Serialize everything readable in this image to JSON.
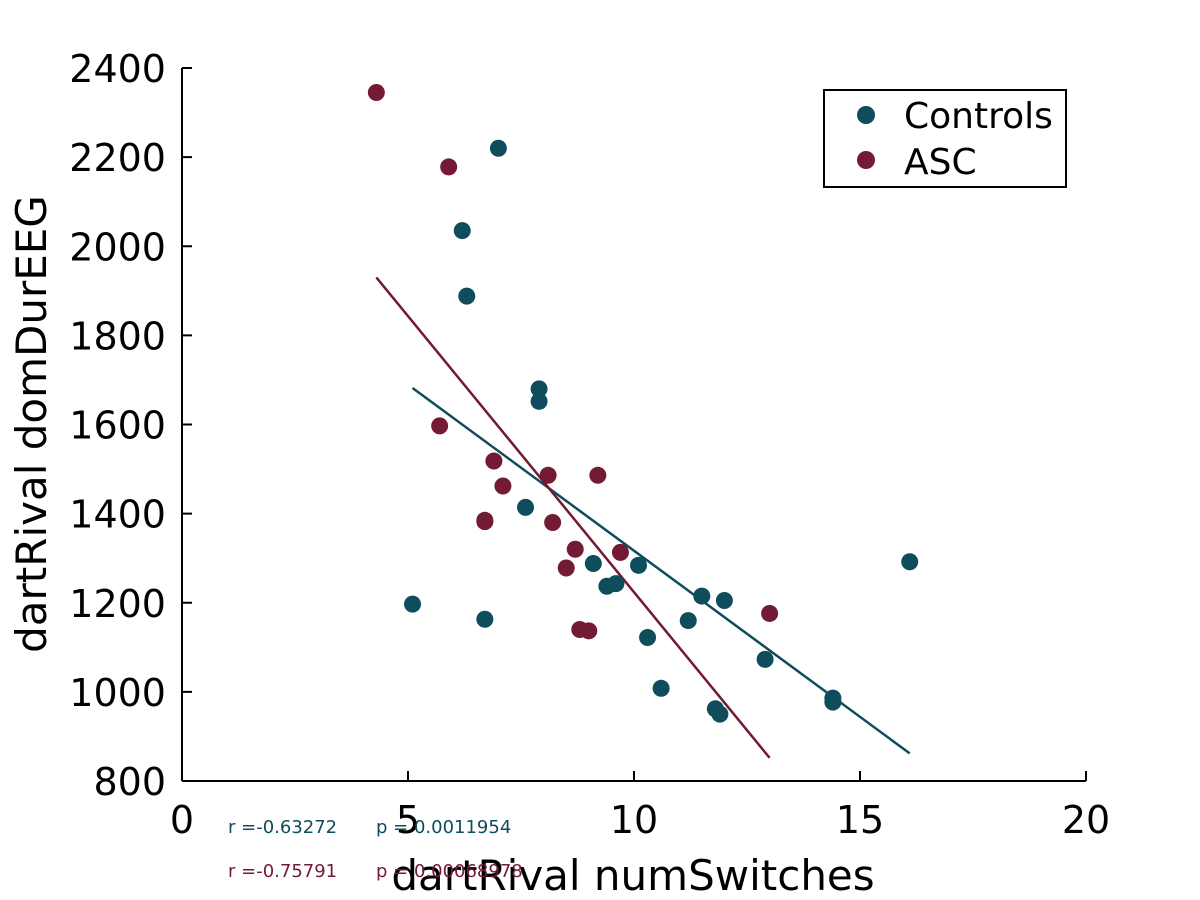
{
  "chart_data": {
    "type": "scatter",
    "title": "",
    "xlabel": "dartRival numSwitches",
    "ylabel": "dartRival domDurEEG",
    "xlim": [
      0,
      20
    ],
    "ylim": [
      800,
      2400
    ],
    "x_ticks": [
      "0",
      "5",
      "10",
      "15",
      "20"
    ],
    "y_ticks": [
      "800",
      "1000",
      "1200",
      "1400",
      "1600",
      "1800",
      "2000",
      "2200",
      "2400"
    ],
    "grid": false,
    "legend_position": "top-right",
    "series": [
      {
        "name": "Controls",
        "color": "#0f4c5c",
        "points": [
          [
            5.1,
            1197
          ],
          [
            6.2,
            2035
          ],
          [
            6.3,
            1888
          ],
          [
            6.7,
            1163
          ],
          [
            7.0,
            2220
          ],
          [
            7.6,
            1414
          ],
          [
            7.9,
            1680
          ],
          [
            7.9,
            1652
          ],
          [
            9.1,
            1288
          ],
          [
            9.4,
            1237
          ],
          [
            9.6,
            1243
          ],
          [
            10.1,
            1284
          ],
          [
            10.3,
            1122
          ],
          [
            10.6,
            1008
          ],
          [
            11.2,
            1160
          ],
          [
            11.5,
            1215
          ],
          [
            11.8,
            962
          ],
          [
            11.9,
            950
          ],
          [
            12.0,
            1205
          ],
          [
            12.9,
            1073
          ],
          [
            14.4,
            986
          ],
          [
            14.4,
            977
          ],
          [
            16.1,
            1292
          ]
        ],
        "fit_line": [
          [
            5.1,
            1682
          ],
          [
            16.1,
            862
          ]
        ],
        "stats": {
          "r": "r =-0.63272",
          "p": "p = 0.0011954"
        }
      },
      {
        "name": "ASC",
        "color": "#731a34",
        "points": [
          [
            4.3,
            2345
          ],
          [
            5.7,
            1597
          ],
          [
            5.9,
            2178
          ],
          [
            6.7,
            1385
          ],
          [
            6.7,
            1382
          ],
          [
            6.9,
            1518
          ],
          [
            7.1,
            1462
          ],
          [
            8.1,
            1486
          ],
          [
            8.2,
            1380
          ],
          [
            8.5,
            1278
          ],
          [
            8.7,
            1320
          ],
          [
            8.8,
            1140
          ],
          [
            9.0,
            1137
          ],
          [
            9.2,
            1486
          ],
          [
            9.7,
            1313
          ],
          [
            13.0,
            1176
          ]
        ],
        "fit_line": [
          [
            4.3,
            1930
          ],
          [
            13.0,
            852
          ]
        ],
        "stats": {
          "r": "r =-0.75791",
          "p": "p = 0.00068978"
        }
      }
    ]
  }
}
